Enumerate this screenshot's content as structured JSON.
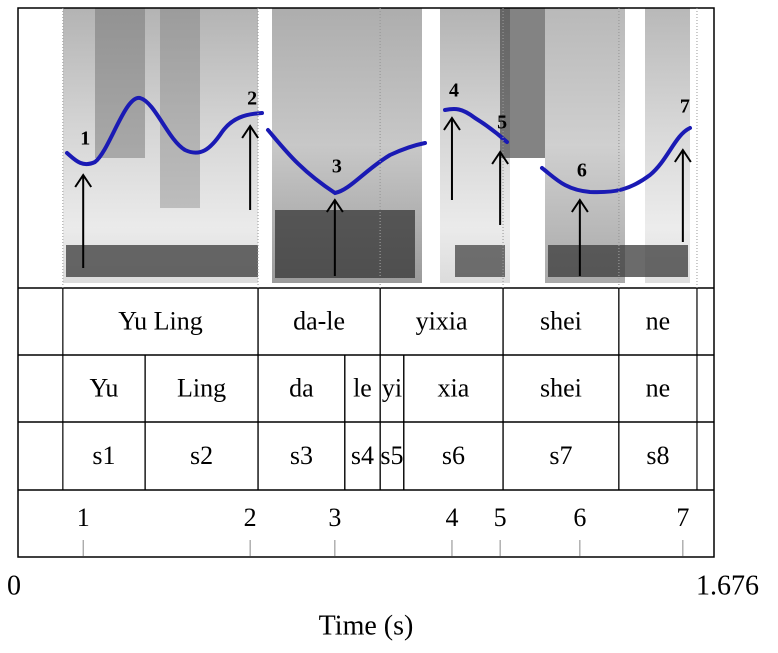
{
  "figure": {
    "xlabel": "Time (s)",
    "xlim": [
      0,
      1.676
    ],
    "xticks": [
      0,
      1.676
    ],
    "tiers": [
      {
        "intervals": [
          {
            "label": "Yu Ling",
            "start": 0.108,
            "end": 0.578
          },
          {
            "label": "da-le",
            "start": 0.578,
            "end": 0.872
          },
          {
            "label": "yixia",
            "start": 0.872,
            "end": 1.168
          },
          {
            "label": "shei",
            "start": 1.168,
            "end": 1.447
          },
          {
            "label": "ne",
            "start": 1.447,
            "end": 1.635
          }
        ]
      },
      {
        "intervals": [
          {
            "label": "Yu",
            "start": 0.108,
            "end": 0.306
          },
          {
            "label": "Ling",
            "start": 0.306,
            "end": 0.578
          },
          {
            "label": "da",
            "start": 0.578,
            "end": 0.787
          },
          {
            "label": "le",
            "start": 0.787,
            "end": 0.872
          },
          {
            "label": "yi",
            "start": 0.872,
            "end": 0.929
          },
          {
            "label": "xia",
            "start": 0.929,
            "end": 1.168
          },
          {
            "label": "shei",
            "start": 1.168,
            "end": 1.447
          },
          {
            "label": "ne",
            "start": 1.447,
            "end": 1.635
          }
        ]
      },
      {
        "intervals": [
          {
            "label": "s1",
            "start": 0.108,
            "end": 0.306
          },
          {
            "label": "s2",
            "start": 0.306,
            "end": 0.578
          },
          {
            "label": "s3",
            "start": 0.578,
            "end": 0.787
          },
          {
            "label": "s4",
            "start": 0.787,
            "end": 0.872
          },
          {
            "label": "s5",
            "start": 0.872,
            "end": 0.929
          },
          {
            "label": "s6",
            "start": 0.929,
            "end": 1.168
          },
          {
            "label": "s7",
            "start": 1.168,
            "end": 1.447
          },
          {
            "label": "s8",
            "start": 1.447,
            "end": 1.635
          }
        ]
      }
    ],
    "points": [
      {
        "label": "1",
        "time": 0.157
      },
      {
        "label": "2",
        "time": 0.559
      },
      {
        "label": "3",
        "time": 0.763
      },
      {
        "label": "4",
        "time": 1.045
      },
      {
        "label": "5",
        "time": 1.161
      },
      {
        "label": "6",
        "time": 1.353
      },
      {
        "label": "7",
        "time": 1.601
      }
    ]
  }
}
